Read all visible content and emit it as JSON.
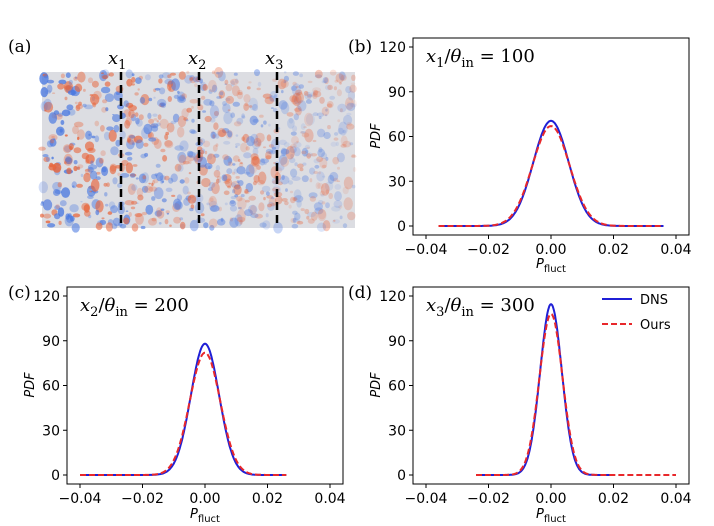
{
  "colors": {
    "dns": "#1f1fd6",
    "ours": "#e8282b",
    "field_pos": "#e8643a",
    "field_neg": "#4a78e0",
    "field_bg": "#dcdde2"
  },
  "chart_data": [
    {
      "type": "heatmap",
      "panel_label": "(a)",
      "section_labels": [
        "x1",
        "x2",
        "x3"
      ],
      "colormap": "coolwarm (blue negative, red positive)"
    },
    {
      "type": "line",
      "panel_label": "(b)",
      "annotation": "x1/θin = 100",
      "xlabel": "P_fluct",
      "ylabel": "PDF",
      "xlim": [
        -0.04,
        0.04
      ],
      "ylim": [
        0,
        120
      ],
      "xticks": [
        "−0.04",
        "−0.02",
        "0.00",
        "0.02",
        "0.04"
      ],
      "yticks": [
        "0",
        "30",
        "60",
        "90",
        "120"
      ],
      "series": [
        {
          "name": "DNS",
          "peak": 70.5,
          "sigma": 0.00566,
          "x_range": [
            -0.036,
            0.036
          ],
          "style": "solid"
        },
        {
          "name": "Ours",
          "peak": 67.0,
          "sigma": 0.00595,
          "x_range": [
            -0.036,
            0.036
          ],
          "style": "dashed"
        }
      ]
    },
    {
      "type": "line",
      "panel_label": "(c)",
      "annotation": "x2/θin = 200",
      "xlabel": "P_fluct",
      "ylabel": "PDF",
      "xlim": [
        -0.04,
        0.04
      ],
      "ylim": [
        0,
        120
      ],
      "xticks": [
        "−0.04",
        "−0.02",
        "0.00",
        "0.02",
        "0.04"
      ],
      "yticks": [
        "0",
        "30",
        "60",
        "90",
        "120"
      ],
      "series": [
        {
          "name": "DNS",
          "peak": 88.0,
          "sigma": 0.00453,
          "x_range": [
            -0.04,
            0.026
          ],
          "style": "solid"
        },
        {
          "name": "Ours",
          "peak": 82.0,
          "sigma": 0.00486,
          "x_range": [
            -0.04,
            0.026
          ],
          "style": "dashed"
        }
      ]
    },
    {
      "type": "line",
      "panel_label": "(d)",
      "annotation": "x3/θin = 300",
      "xlabel": "P_fluct",
      "ylabel": "PDF",
      "xlim": [
        -0.04,
        0.04
      ],
      "ylim": [
        0,
        120
      ],
      "xticks": [
        "−0.04",
        "−0.02",
        "0.00",
        "0.02",
        "0.04"
      ],
      "yticks": [
        "0",
        "30",
        "60",
        "90",
        "120"
      ],
      "legend": {
        "placement": "top-right",
        "entries": [
          "DNS",
          "Ours"
        ]
      },
      "series": [
        {
          "name": "DNS",
          "peak": 114.5,
          "sigma": 0.00348,
          "x_range": [
            -0.024,
            0.02
          ],
          "style": "solid"
        },
        {
          "name": "Ours",
          "peak": 108.0,
          "sigma": 0.00369,
          "x_range": [
            -0.024,
            0.04
          ],
          "style": "dashed"
        }
      ]
    }
  ]
}
